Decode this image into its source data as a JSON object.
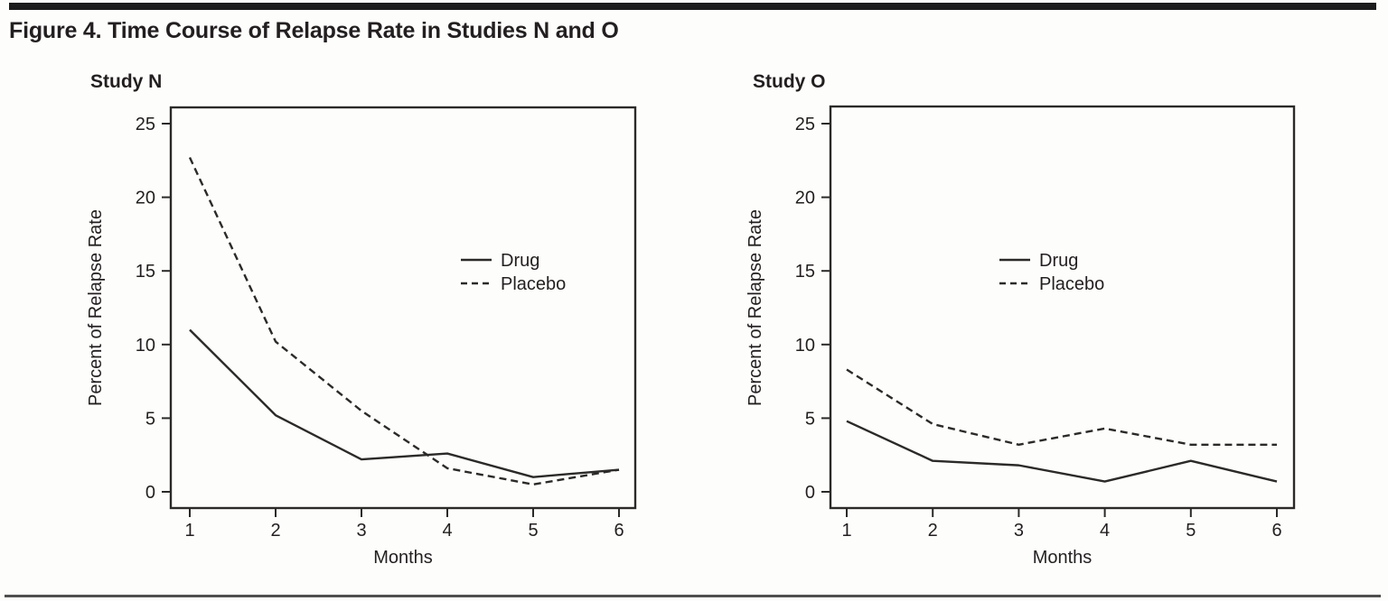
{
  "figure": {
    "title": "Figure 4. Time Course of Relapse Rate in Studies N and O"
  },
  "colors": {
    "line": "#2b2a28",
    "text": "#231f20",
    "top_bar": "#1c1c1c",
    "bottom_rule": "#4f4f4f",
    "background": "#fdfdfb"
  },
  "chart_data": [
    {
      "type": "line",
      "title": "Study N",
      "xlabel": "Months",
      "ylabel": "Percent of Relapse Rate",
      "x": [
        1,
        2,
        3,
        4,
        5,
        6
      ],
      "xticklabels": [
        "1",
        "2",
        "3",
        "4",
        "5",
        "6"
      ],
      "ylim": [
        0,
        25
      ],
      "yticks": [
        0,
        5,
        10,
        15,
        20,
        25
      ],
      "grid": false,
      "legend_position": "middle-right-inside",
      "series": [
        {
          "name": "Drug",
          "style": "solid",
          "values": [
            11.0,
            5.2,
            2.2,
            2.6,
            1.0,
            1.5
          ]
        },
        {
          "name": "Placebo",
          "style": "dashed",
          "values": [
            22.7,
            10.2,
            5.5,
            1.6,
            0.5,
            1.5
          ]
        }
      ]
    },
    {
      "type": "line",
      "title": "Study O",
      "xlabel": "Months",
      "ylabel": "Percent of Relapse Rate",
      "x": [
        1,
        2,
        3,
        4,
        5,
        6
      ],
      "xticklabels": [
        "1",
        "2",
        "3",
        "4",
        "5",
        "6"
      ],
      "ylim": [
        0,
        25
      ],
      "yticks": [
        0,
        5,
        10,
        15,
        20,
        25
      ],
      "grid": false,
      "legend_position": "middle-right-inside",
      "series": [
        {
          "name": "Drug",
          "style": "solid",
          "values": [
            4.8,
            2.1,
            1.8,
            0.7,
            2.1,
            0.7
          ]
        },
        {
          "name": "Placebo",
          "style": "dashed",
          "values": [
            8.3,
            4.6,
            3.2,
            4.3,
            3.2,
            3.2
          ]
        }
      ]
    }
  ]
}
